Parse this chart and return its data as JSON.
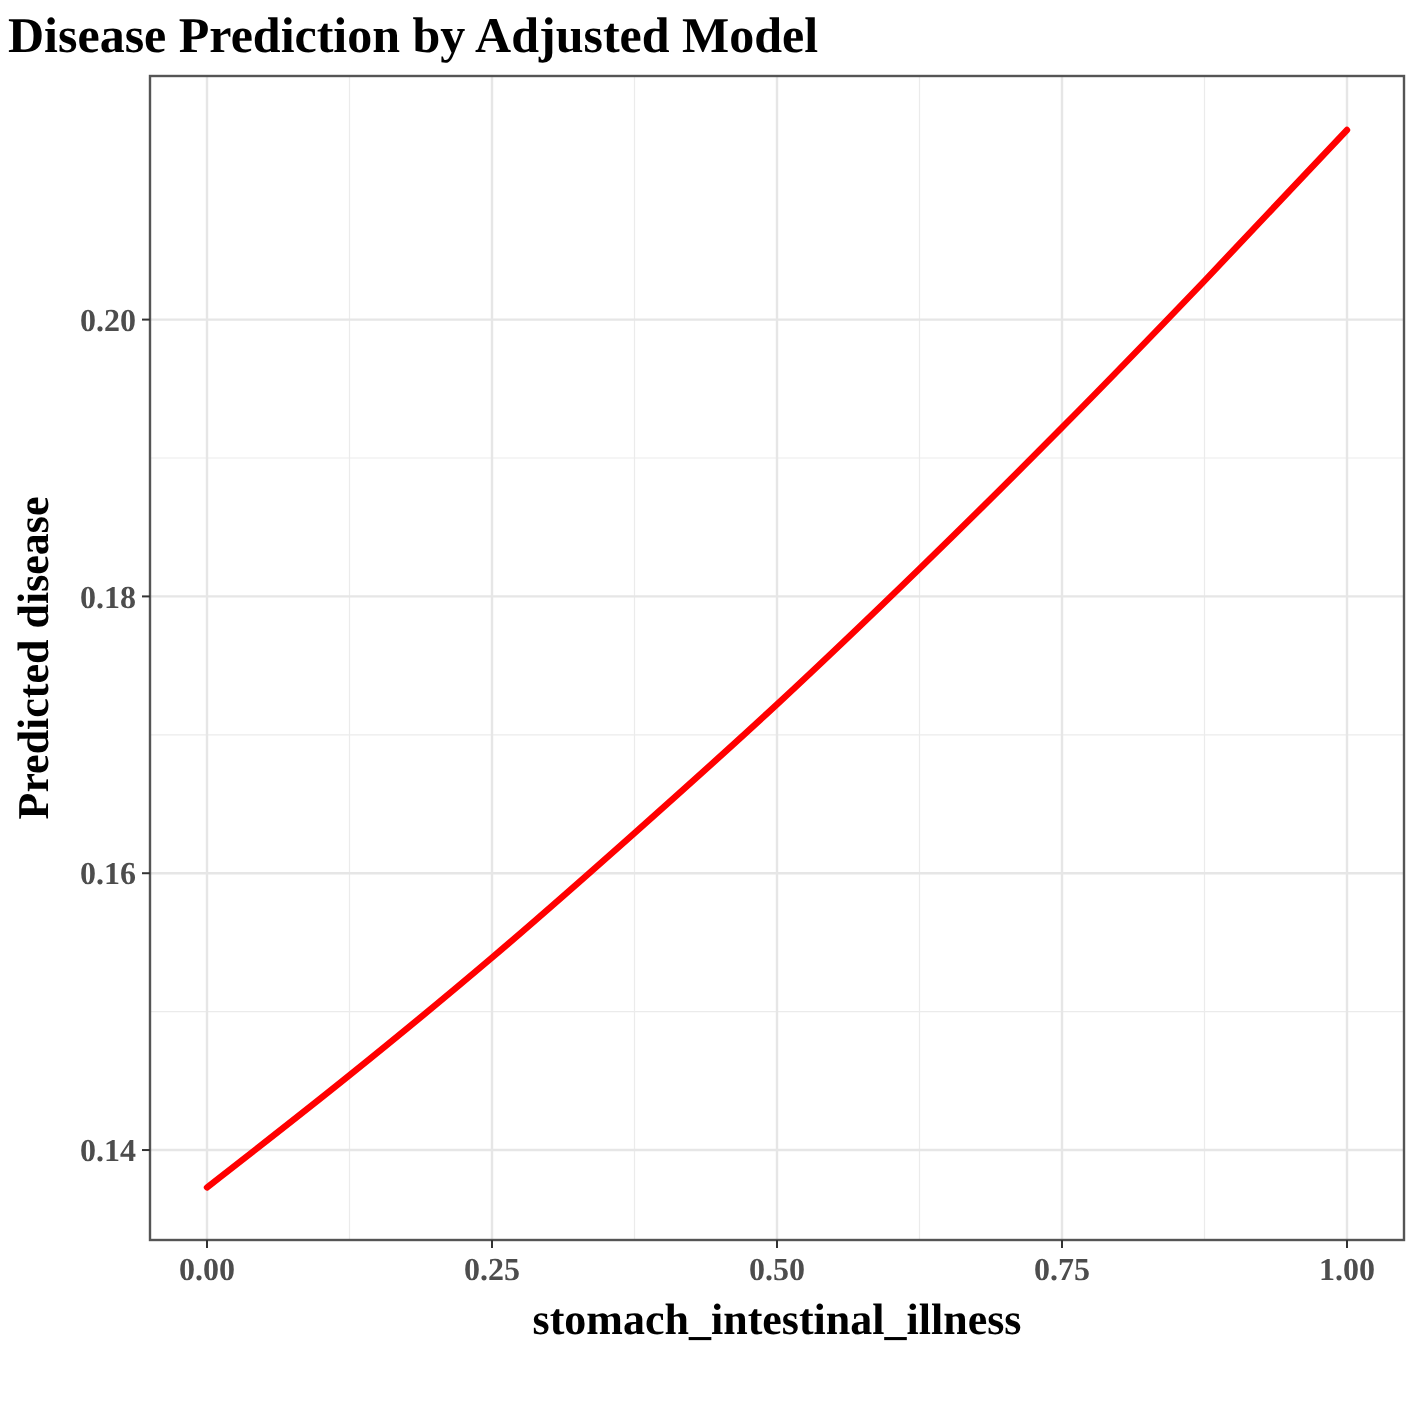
{
  "chart_data": {
    "type": "line",
    "title": "Disease Prediction by Adjusted Model",
    "xlabel": "stomach_intestinal_illness",
    "ylabel": "Predicted disease",
    "x": [
      0,
      0.125,
      0.25,
      0.375,
      0.5,
      0.625,
      0.75,
      0.875,
      1
    ],
    "series": [
      {
        "color": "#ff0000",
        "values": [
          0.1373,
          0.1454,
          0.1539,
          0.1629,
          0.1722,
          0.182,
          0.1922,
          0.2028,
          0.2137
        ]
      }
    ],
    "xlim": [
      -0.05,
      1.05
    ],
    "xticks": [
      {
        "value": 0,
        "label": "0.00"
      },
      {
        "value": 0.25,
        "label": "0.25"
      },
      {
        "value": 0.5,
        "label": "0.50"
      },
      {
        "value": 0.75,
        "label": "0.75"
      },
      {
        "value": 1,
        "label": "1.00"
      }
    ],
    "ylim": [
      0.1335,
      0.2176
    ],
    "yticks": [
      {
        "value": 0.14,
        "label": "0.14"
      },
      {
        "value": 0.16,
        "label": "0.16"
      },
      {
        "value": 0.18,
        "label": "0.18"
      },
      {
        "value": 0.2,
        "label": "0.20"
      }
    ],
    "grid": true,
    "line_style": "solid",
    "marker": "none"
  }
}
